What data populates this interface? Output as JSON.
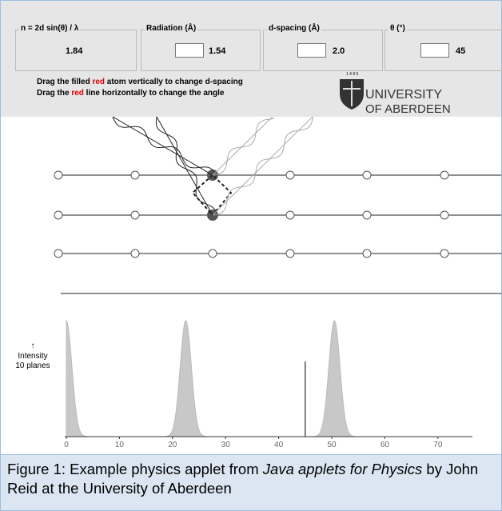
{
  "panel": {
    "boxes": [
      {
        "title": "n = 2d sin(θ) / λ",
        "value": "1.84"
      },
      {
        "title": "Radiation (Å)",
        "value": "1.54"
      },
      {
        "title": "d-spacing (Å)",
        "value": "2.0"
      },
      {
        "title": "θ (°)",
        "value": "45"
      }
    ],
    "instructions": [
      [
        "Drag the filled ",
        "red",
        " atom vertically to change d-spacing"
      ],
      [
        "Drag the ",
        "red",
        " line horizontally to change the angle"
      ]
    ],
    "logo": {
      "year": "1 4 9 5",
      "line1": "UNIVERSITY",
      "line2": "OF ABERDEEN"
    }
  },
  "plot": {
    "y_label": [
      "Intensity",
      "10 planes"
    ],
    "xlim": [
      0,
      76.5
    ],
    "ylim": [
      0,
      1
    ],
    "xticks": [
      0,
      10,
      20,
      30,
      40,
      50,
      60,
      70
    ],
    "peaks": [
      {
        "x": 0,
        "height": 1
      },
      {
        "x": 22.5,
        "height": 1
      },
      {
        "x": 50.5,
        "height": 1
      }
    ],
    "marker_x": 45,
    "marker_height": 0.65
  },
  "caption": {
    "parts": [
      "Figure 1: Example physics applet from ",
      "Java applets for Physics",
      " by John Reid at the University of Aberdeen"
    ]
  }
}
